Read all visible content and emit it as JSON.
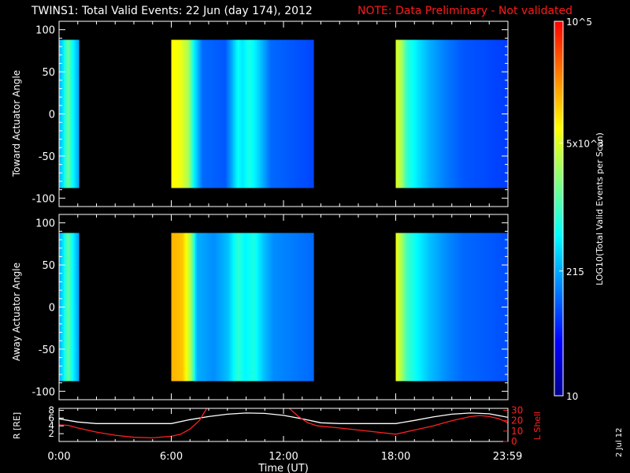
{
  "title": {
    "main": "TWINS1: Total Valid Events: 22 Jun (day 174), 2012",
    "note": "NOTE: Data Preliminary - Not validated"
  },
  "datestamp": "2 Jul 12",
  "colorbar": {
    "label": "LOG10(Total Valid Events per Scan)",
    "ticks": [
      {
        "label": "10^5",
        "value": 100000
      },
      {
        "label": "5x10^3",
        "value": 5000
      },
      {
        "label": "215",
        "value": 215
      },
      {
        "label": "10",
        "value": 10
      }
    ],
    "range": [
      10,
      100000
    ],
    "scale": "log",
    "colormap": [
      "#00008f",
      "#0000ff",
      "#0080ff",
      "#00ffff",
      "#80ff80",
      "#ffff00",
      "#ff8000",
      "#ff0000"
    ]
  },
  "chart_data": [
    {
      "type": "heatmap",
      "name": "toward",
      "ylabel": "Toward Actuator Angle",
      "ylim": [
        -110,
        110
      ],
      "yticks": [
        100,
        50,
        0,
        -50,
        -100
      ],
      "xlim_hours": [
        0,
        24
      ],
      "data_ylim": [
        -88,
        88
      ],
      "blocks": [
        {
          "start": 0.0,
          "end": 1.05,
          "profile": [
            [
              0.0,
              0.34
            ],
            [
              0.2,
              0.4
            ],
            [
              0.45,
              0.55
            ],
            [
              0.65,
              0.45
            ],
            [
              0.85,
              0.38
            ],
            [
              1.0,
              0.33
            ]
          ]
        },
        {
          "start": 6.0,
          "end": 13.6,
          "profile": [
            [
              0.0,
              0.72
            ],
            [
              0.06,
              0.7
            ],
            [
              0.12,
              0.62
            ],
            [
              0.16,
              0.42
            ],
            [
              0.22,
              0.26
            ],
            [
              0.38,
              0.24
            ],
            [
              0.42,
              0.32
            ],
            [
              0.47,
              0.44
            ],
            [
              0.5,
              0.4
            ],
            [
              0.55,
              0.46
            ],
            [
              0.6,
              0.4
            ],
            [
              0.7,
              0.26
            ],
            [
              1.0,
              0.22
            ]
          ]
        },
        {
          "start": 18.0,
          "end": 23.99,
          "profile": [
            [
              0.0,
              0.68
            ],
            [
              0.05,
              0.62
            ],
            [
              0.1,
              0.48
            ],
            [
              0.2,
              0.4
            ],
            [
              0.3,
              0.34
            ],
            [
              0.45,
              0.28
            ],
            [
              0.6,
              0.24
            ],
            [
              1.0,
              0.21
            ]
          ]
        }
      ]
    },
    {
      "type": "heatmap",
      "name": "away",
      "ylabel": "Away Actuator Angle",
      "ylim": [
        -110,
        110
      ],
      "yticks": [
        100,
        50,
        0,
        -50,
        -100
      ],
      "xlim_hours": [
        0,
        24
      ],
      "data_ylim": [
        -88,
        88
      ],
      "blocks": [
        {
          "start": 0.0,
          "end": 1.05,
          "profile": [
            [
              0.0,
              0.33
            ],
            [
              0.2,
              0.4
            ],
            [
              0.45,
              0.54
            ],
            [
              0.65,
              0.45
            ],
            [
              0.85,
              0.37
            ],
            [
              1.0,
              0.32
            ]
          ]
        },
        {
          "start": 6.0,
          "end": 13.6,
          "profile": [
            [
              0.0,
              0.8
            ],
            [
              0.08,
              0.78
            ],
            [
              0.14,
              0.6
            ],
            [
              0.18,
              0.34
            ],
            [
              0.3,
              0.3
            ],
            [
              0.4,
              0.36
            ],
            [
              0.47,
              0.48
            ],
            [
              0.52,
              0.42
            ],
            [
              0.58,
              0.46
            ],
            [
              0.65,
              0.36
            ],
            [
              0.72,
              0.3
            ],
            [
              1.0,
              0.26
            ]
          ]
        },
        {
          "start": 18.0,
          "end": 23.99,
          "profile": [
            [
              0.0,
              0.7
            ],
            [
              0.05,
              0.62
            ],
            [
              0.1,
              0.5
            ],
            [
              0.2,
              0.42
            ],
            [
              0.3,
              0.36
            ],
            [
              0.45,
              0.3
            ],
            [
              0.6,
              0.26
            ],
            [
              1.0,
              0.23
            ]
          ]
        }
      ]
    },
    {
      "type": "line",
      "name": "orbit",
      "ylabel_left": "R [RE]",
      "ylabel_right": "L Shell",
      "xlabel": "Time (UT)",
      "x_ticks": [
        {
          "h": 0,
          "label": "0:00"
        },
        {
          "h": 6,
          "label": "6:00"
        },
        {
          "h": 12,
          "label": "12:00"
        },
        {
          "h": 18,
          "label": "18:00"
        },
        {
          "h": 23.98,
          "label": "23:59"
        }
      ],
      "left_ticks": [
        2,
        4,
        6,
        8
      ],
      "left_ylim": [
        0,
        8.5
      ],
      "right_ticks": [
        0,
        10,
        20,
        30
      ],
      "right_ylim": [
        0,
        31.875
      ],
      "series": [
        {
          "name": "R",
          "color": "#ffffff",
          "axis": "left",
          "x": [
            0,
            1,
            2,
            3,
            4,
            5,
            6,
            7,
            8,
            9,
            10,
            11,
            12,
            13,
            14,
            15,
            16,
            17,
            18,
            19,
            20,
            21,
            22,
            23,
            24
          ],
          "y": [
            5.8,
            5.0,
            4.6,
            4.6,
            4.6,
            4.6,
            4.6,
            5.6,
            6.4,
            7.0,
            7.3,
            7.2,
            6.7,
            5.8,
            4.8,
            4.6,
            4.6,
            4.6,
            4.6,
            5.4,
            6.3,
            7.0,
            7.3,
            7.1,
            6.2
          ]
        },
        {
          "name": "L Shell",
          "color": "#ff2020",
          "axis": "right",
          "x": [
            0,
            0.5,
            1,
            2,
            3,
            4,
            5,
            6,
            6.5,
            7,
            7.5,
            7.9,
            12.3,
            12.8,
            13.3,
            13.8,
            15,
            16,
            17,
            18,
            19,
            20,
            21,
            22,
            22.5,
            23,
            23.5,
            24
          ],
          "y": [
            16,
            15.5,
            13,
            9,
            6,
            4,
            3.5,
            5,
            7,
            12,
            20,
            32,
            32,
            24,
            18,
            15,
            13,
            11,
            9,
            7,
            11,
            15,
            20,
            24,
            25,
            24,
            22,
            18
          ]
        }
      ]
    }
  ]
}
